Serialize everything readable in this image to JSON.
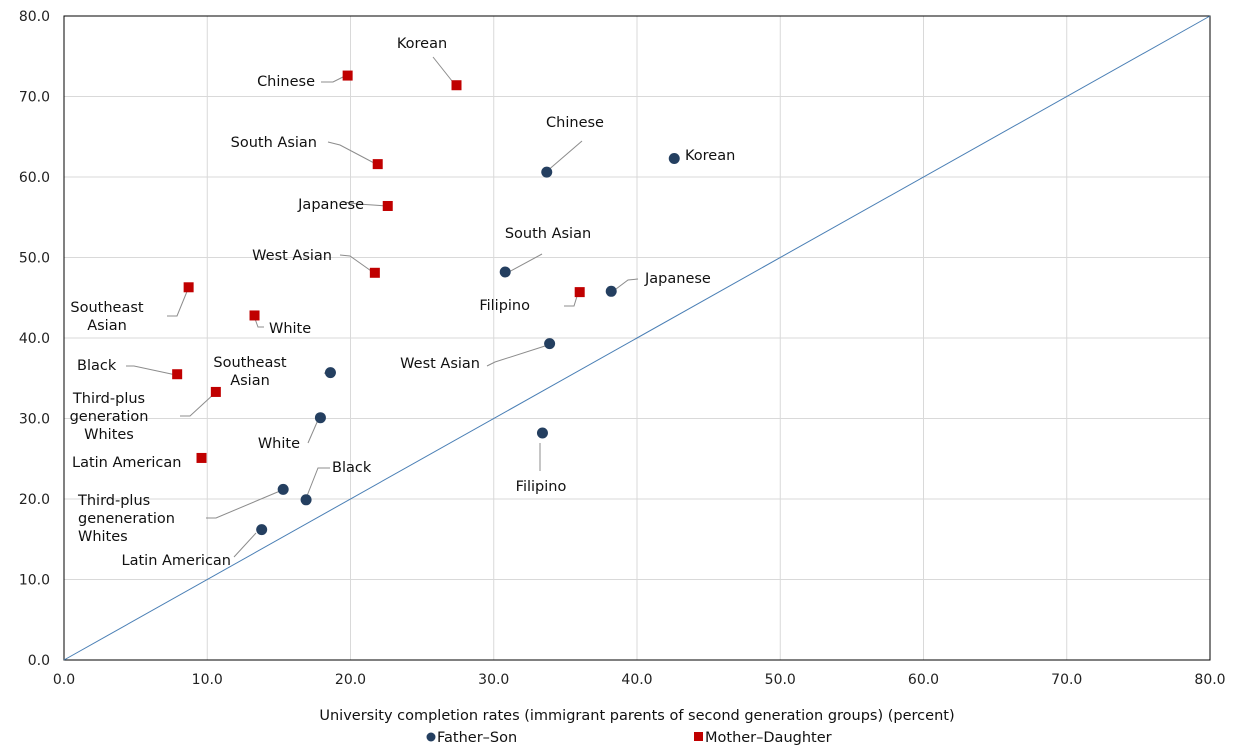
{
  "chart_data": {
    "type": "scatter",
    "title": "",
    "xlabel": "University completion rates (immigrant parents of second generation groups) (percent)",
    "ylabel": "",
    "xlim": [
      0,
      80
    ],
    "ylim": [
      0,
      80
    ],
    "x_ticks": [
      "0.0",
      "10.0",
      "20.0",
      "30.0",
      "40.0",
      "50.0",
      "60.0",
      "70.0",
      "80.0"
    ],
    "y_ticks": [
      "0.0",
      "10.0",
      "20.0",
      "30.0",
      "40.0",
      "50.0",
      "60.0",
      "70.0",
      "80.0"
    ],
    "grid": true,
    "reference_line": {
      "from": [
        0,
        0
      ],
      "to": [
        80,
        80
      ],
      "color": "#4a7fb5"
    },
    "legend": {
      "placement": "bottom"
    },
    "series": [
      {
        "name": "Father–Son",
        "marker": "circle",
        "color": "#243f60",
        "points": [
          {
            "label": "Korean",
            "x": 42.6,
            "y": 62.3
          },
          {
            "label": "Chinese",
            "x": 33.7,
            "y": 60.6
          },
          {
            "label": "South Asian",
            "x": 30.8,
            "y": 48.2
          },
          {
            "label": "Japanese",
            "x": 38.2,
            "y": 45.8
          },
          {
            "label": "West Asian",
            "x": 33.9,
            "y": 39.3
          },
          {
            "label": "Southeast Asian",
            "x": 18.6,
            "y": 35.7
          },
          {
            "label": "White",
            "x": 17.9,
            "y": 30.1
          },
          {
            "label": "Filipino",
            "x": 33.4,
            "y": 28.2
          },
          {
            "label": "Third-plus geneneration Whites",
            "x": 15.3,
            "y": 21.2
          },
          {
            "label": "Black",
            "x": 16.9,
            "y": 19.9
          },
          {
            "label": "Latin American",
            "x": 13.8,
            "y": 16.2
          }
        ]
      },
      {
        "name": "Mother–Daughter",
        "marker": "square",
        "color": "#c00000",
        "points": [
          {
            "label": "Chinese",
            "x": 19.8,
            "y": 72.6
          },
          {
            "label": "Korean",
            "x": 27.4,
            "y": 71.4
          },
          {
            "label": "South Asian",
            "x": 21.9,
            "y": 61.6
          },
          {
            "label": "Japanese",
            "x": 22.6,
            "y": 56.4
          },
          {
            "label": "West Asian",
            "x": 21.7,
            "y": 48.1
          },
          {
            "label": "Southeast Asian",
            "x": 8.7,
            "y": 46.3
          },
          {
            "label": "Filipino",
            "x": 36.0,
            "y": 45.7
          },
          {
            "label": "White",
            "x": 13.3,
            "y": 42.8
          },
          {
            "label": "Black",
            "x": 7.9,
            "y": 35.5
          },
          {
            "label": "Third-plus generation Whites",
            "x": 10.6,
            "y": 33.3
          },
          {
            "label": "Latin American",
            "x": 9.6,
            "y": 25.1
          }
        ]
      }
    ]
  }
}
